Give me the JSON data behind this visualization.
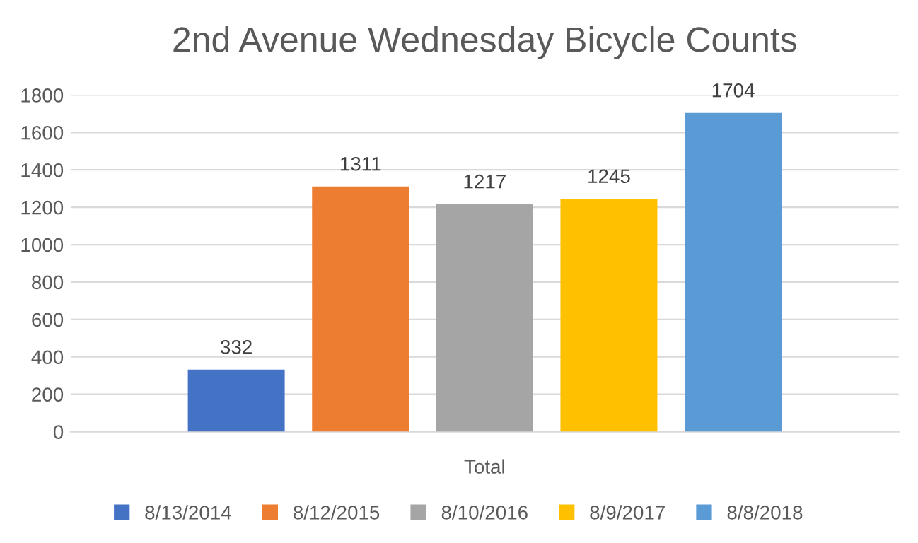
{
  "chart_data": {
    "type": "bar",
    "title": "2nd Avenue Wednesday Bicycle Counts",
    "categories": [
      "Total"
    ],
    "series": [
      {
        "name": "8/13/2014",
        "color": "#4472c4",
        "values": [
          332
        ]
      },
      {
        "name": "8/12/2015",
        "color": "#ed7d31",
        "values": [
          1311
        ]
      },
      {
        "name": "8/10/2016",
        "color": "#a5a5a5",
        "values": [
          1217
        ]
      },
      {
        "name": "8/9/2017",
        "color": "#ffc000",
        "values": [
          1245
        ]
      },
      {
        "name": "8/8/2018",
        "color": "#5b9bd5",
        "values": [
          1704
        ]
      }
    ],
    "ylim": [
      0,
      1800
    ],
    "yticks": [
      0,
      200,
      400,
      600,
      800,
      1000,
      1200,
      1400,
      1600,
      1800
    ],
    "grid": "y",
    "legend": "bottom",
    "data_labels": true
  }
}
